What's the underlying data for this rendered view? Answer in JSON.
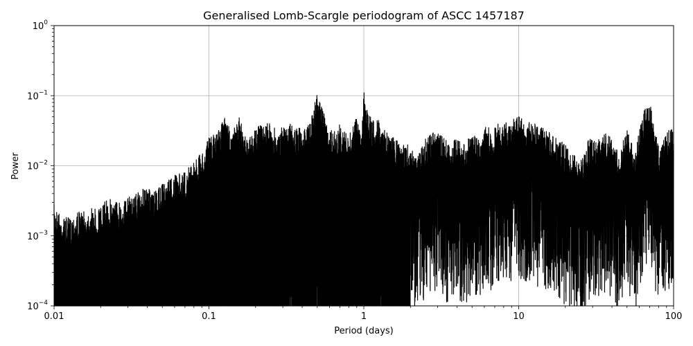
{
  "chart_data": {
    "type": "line",
    "title": "Generalised Lomb-Scargle periodogram of ASCC 1457187",
    "xlabel": "Period (days)",
    "ylabel": "Power",
    "x_scale": "log",
    "y_scale": "log",
    "xlim": [
      0.01,
      100
    ],
    "ylim": [
      0.0001,
      1
    ],
    "grid": true,
    "x_ticks": [
      {
        "value": 0.01,
        "label": "0.01"
      },
      {
        "value": 0.1,
        "label": "0.1"
      },
      {
        "value": 1,
        "label": "1"
      },
      {
        "value": 10,
        "label": "10"
      },
      {
        "value": 100,
        "label": "100"
      }
    ],
    "y_ticks": [
      {
        "value": 0.0001,
        "base": "10",
        "exp": "−4"
      },
      {
        "value": 0.001,
        "base": "10",
        "exp": "−3"
      },
      {
        "value": 0.01,
        "base": "10",
        "exp": "−2"
      },
      {
        "value": 0.1,
        "base": "10",
        "exp": "−1"
      },
      {
        "value": 1,
        "base": "10",
        "exp": "0"
      }
    ],
    "line_color": "#000000",
    "series": [
      {
        "x": [
          0.01,
          0.0112,
          0.0126,
          0.0141,
          0.0158,
          0.0178,
          0.02,
          0.0224,
          0.0251,
          0.0282,
          0.0316,
          0.0355,
          0.0398,
          0.0447,
          0.0501,
          0.0562,
          0.0631,
          0.0708,
          0.0794,
          0.0891,
          0.1,
          0.112,
          0.126,
          0.141,
          0.158,
          0.178,
          0.2,
          0.224,
          0.251,
          0.282,
          0.316,
          0.355,
          0.398,
          0.447,
          0.5,
          0.562,
          0.631,
          0.708,
          0.794,
          0.891,
          0.95,
          1.0,
          1.12,
          1.26,
          1.41,
          1.58,
          1.78,
          2.0,
          2.24,
          2.51,
          2.82,
          3.16,
          3.55,
          3.98,
          4.47,
          5.01,
          5.62,
          6.31,
          6.8,
          7.08,
          7.94,
          8.91,
          10,
          11.2,
          12.6,
          14.1,
          15.8,
          17.8,
          20,
          22.4,
          25.1,
          28.2,
          31.6,
          35.5,
          39.8,
          44.7,
          50.1,
          56.2,
          63.1,
          70.8,
          79.4,
          89.1,
          100
        ],
        "y": [
          0.0028,
          0.0019,
          0.0018,
          0.0023,
          0.0022,
          0.0025,
          0.0026,
          0.0035,
          0.0033,
          0.0032,
          0.0038,
          0.0045,
          0.0048,
          0.0042,
          0.0055,
          0.007,
          0.0075,
          0.0085,
          0.012,
          0.015,
          0.025,
          0.03,
          0.05,
          0.03,
          0.05,
          0.025,
          0.035,
          0.04,
          0.04,
          0.03,
          0.045,
          0.035,
          0.035,
          0.04,
          0.11,
          0.05,
          0.03,
          0.04,
          0.025,
          0.05,
          0.03,
          0.12,
          0.045,
          0.05,
          0.03,
          0.025,
          0.02,
          0.02,
          0.015,
          0.025,
          0.03,
          0.03,
          0.02,
          0.025,
          0.02,
          0.03,
          0.025,
          0.045,
          0.02,
          0.04,
          0.04,
          0.045,
          0.05,
          0.045,
          0.04,
          0.035,
          0.03,
          0.025,
          0.02,
          0.015,
          0.012,
          0.025,
          0.022,
          0.03,
          0.025,
          0.015,
          0.035,
          0.015,
          0.06,
          0.075,
          0.02,
          0.03,
          0.038
        ]
      }
    ]
  }
}
